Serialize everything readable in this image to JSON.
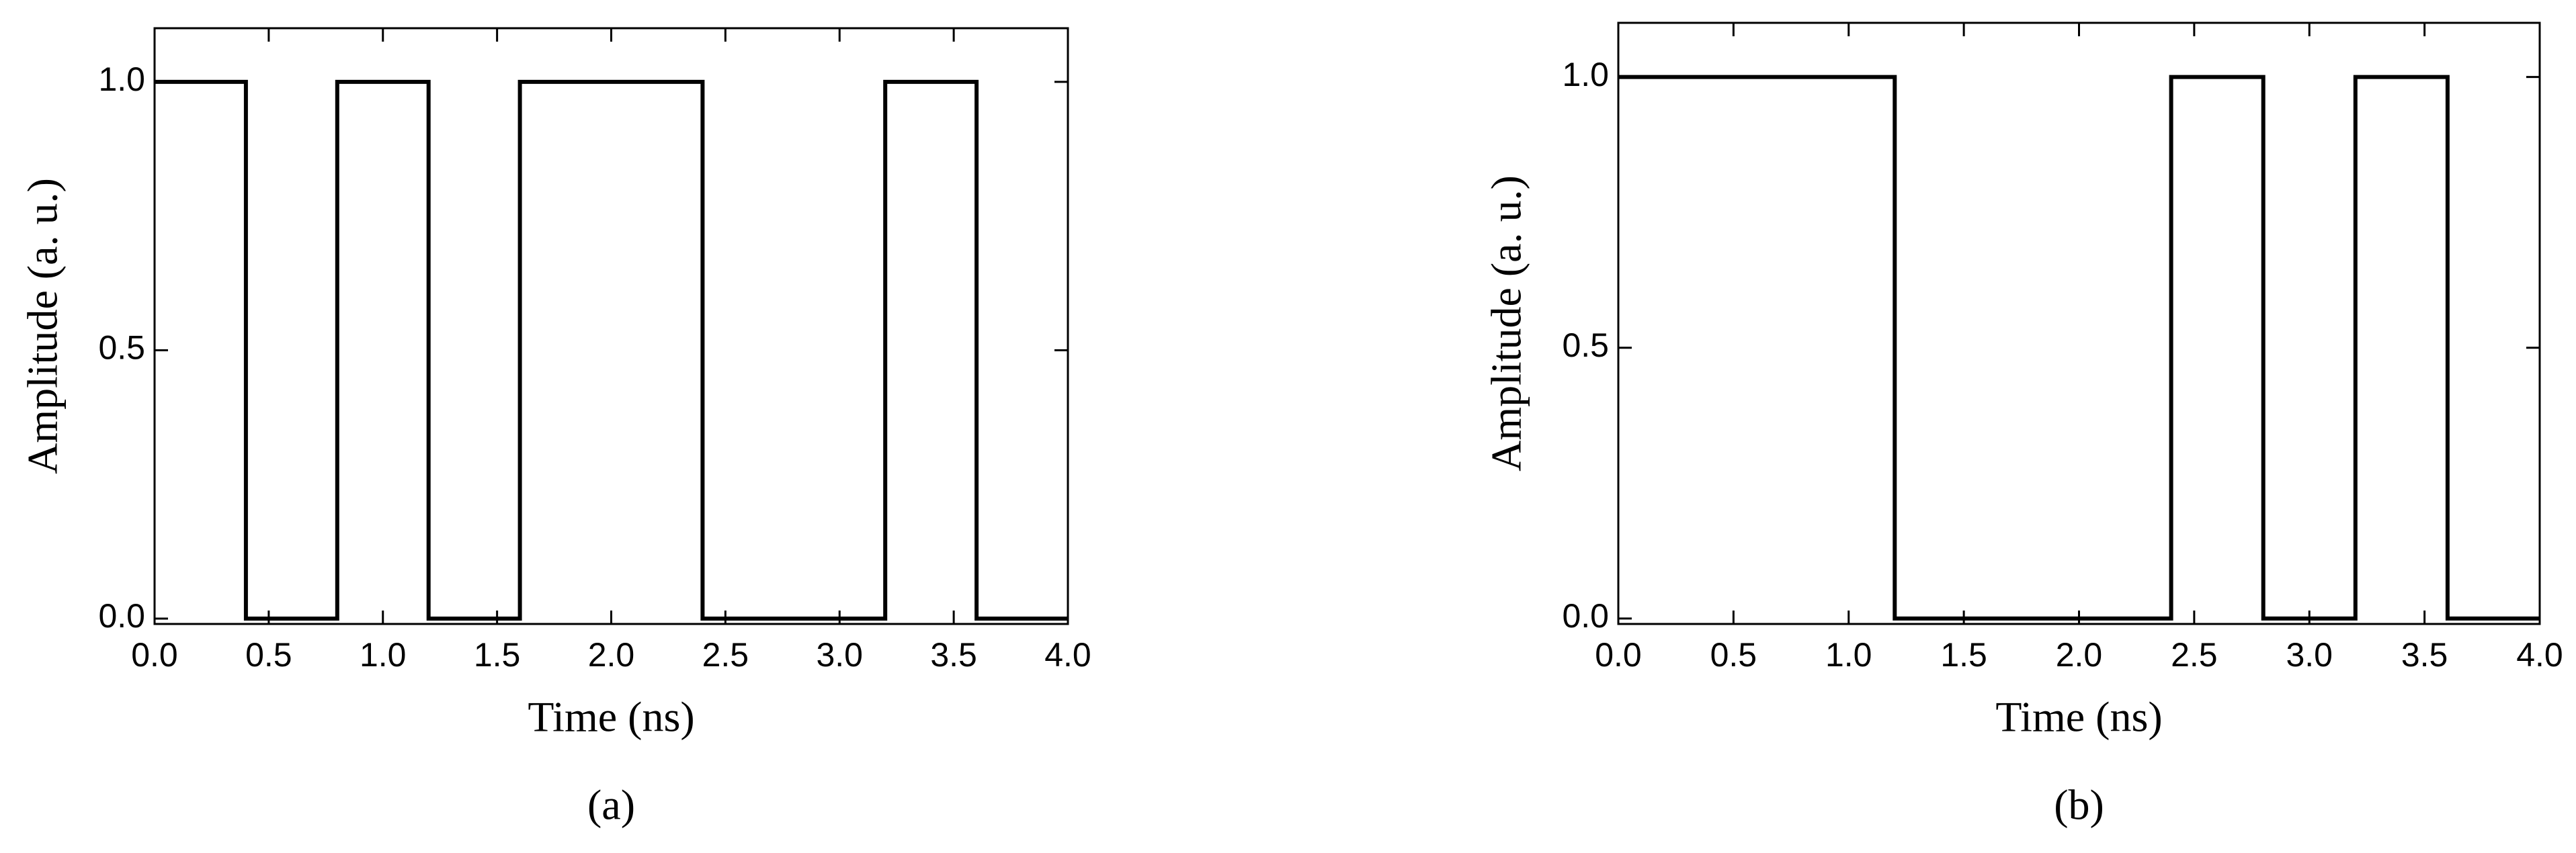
{
  "chart_data": [
    {
      "type": "line",
      "xlabel": "Time (ns)",
      "ylabel": "Amplitude (a. u.)",
      "caption": "(a)",
      "x": [
        0,
        0.4,
        0.4,
        0.8,
        0.8,
        1.2,
        1.2,
        1.6,
        1.6,
        2.4,
        2.4,
        3.2,
        3.2,
        3.6,
        3.6,
        4.0
      ],
      "values": [
        1,
        1,
        0,
        0,
        1,
        1,
        0,
        0,
        1,
        1,
        0,
        0,
        1,
        1,
        0,
        0
      ],
      "color": "#000000",
      "grid": false,
      "xlim": [
        0,
        4
      ],
      "ylim": [
        -0.01,
        1.1
      ],
      "xticks": [
        {
          "value": 0,
          "label": "0.0"
        },
        0.5,
        {
          "value": 1,
          "label": "1.0"
        },
        1.5,
        {
          "value": 2,
          "label": "2.0"
        },
        2.5,
        {
          "value": 3,
          "label": "3.0"
        },
        3.5,
        {
          "value": 4,
          "label": "4.0"
        }
      ],
      "yticks": [
        {
          "value": 0,
          "label": "0.0"
        },
        0.5,
        {
          "value": 1,
          "label": "1.0"
        }
      ]
    },
    {
      "type": "line",
      "xlabel": "Time (ns)",
      "ylabel": "Amplitude (a. u.)",
      "caption": "(b)",
      "x": [
        0,
        1.2,
        1.2,
        2.4,
        2.4,
        2.8,
        2.8,
        3.2,
        3.2,
        3.6,
        3.6,
        4.0
      ],
      "values": [
        1,
        1,
        0,
        0,
        1,
        1,
        0,
        0,
        1,
        1,
        0,
        0
      ],
      "color": "#000000",
      "grid": false,
      "xlim": [
        0,
        4
      ],
      "ylim": [
        -0.01,
        1.1
      ],
      "xticks": [
        {
          "value": 0,
          "label": "0.0"
        },
        0.5,
        {
          "value": 1,
          "label": "1.0"
        },
        1.5,
        {
          "value": 2,
          "label": "2.0"
        },
        2.5,
        {
          "value": 3,
          "label": "3.0"
        },
        3.5,
        {
          "value": 4,
          "label": "4.0"
        }
      ],
      "yticks": [
        {
          "value": 0,
          "label": "0.0"
        },
        0.5,
        {
          "value": 1,
          "label": "1.0"
        }
      ]
    }
  ]
}
